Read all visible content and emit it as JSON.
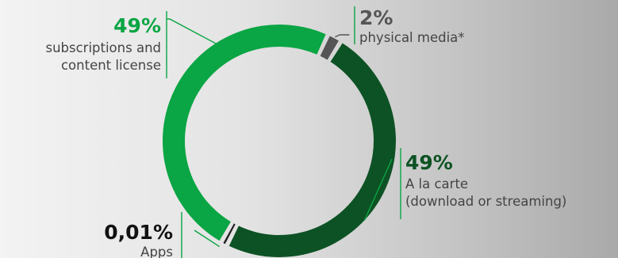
{
  "chart_data": {
    "type": "pie",
    "variant": "donut",
    "unit": "%",
    "slices": [
      {
        "percent_label": "2%",
        "value": 2,
        "label_lines": [
          "physical media*"
        ],
        "color": "#555555",
        "pct_color": "#555555"
      },
      {
        "percent_label": "49%",
        "value": 49,
        "label_lines": [
          "A la carte",
          "(download or streaming)"
        ],
        "color": "#0d5224",
        "pct_color": "#0d5224"
      },
      {
        "percent_label": "0,01%",
        "value": 0.01,
        "label_lines": [
          "Apps"
        ],
        "color": "#222222",
        "pct_color": "#111111"
      },
      {
        "percent_label": "49%",
        "value": 49,
        "label_lines": [
          "subscriptions and",
          "content license"
        ],
        "color": "#0aa544",
        "pct_color": "#0aa544"
      }
    ],
    "label_text_color": "#444444",
    "leader_line_color": "#0aa544",
    "legend": "none"
  }
}
